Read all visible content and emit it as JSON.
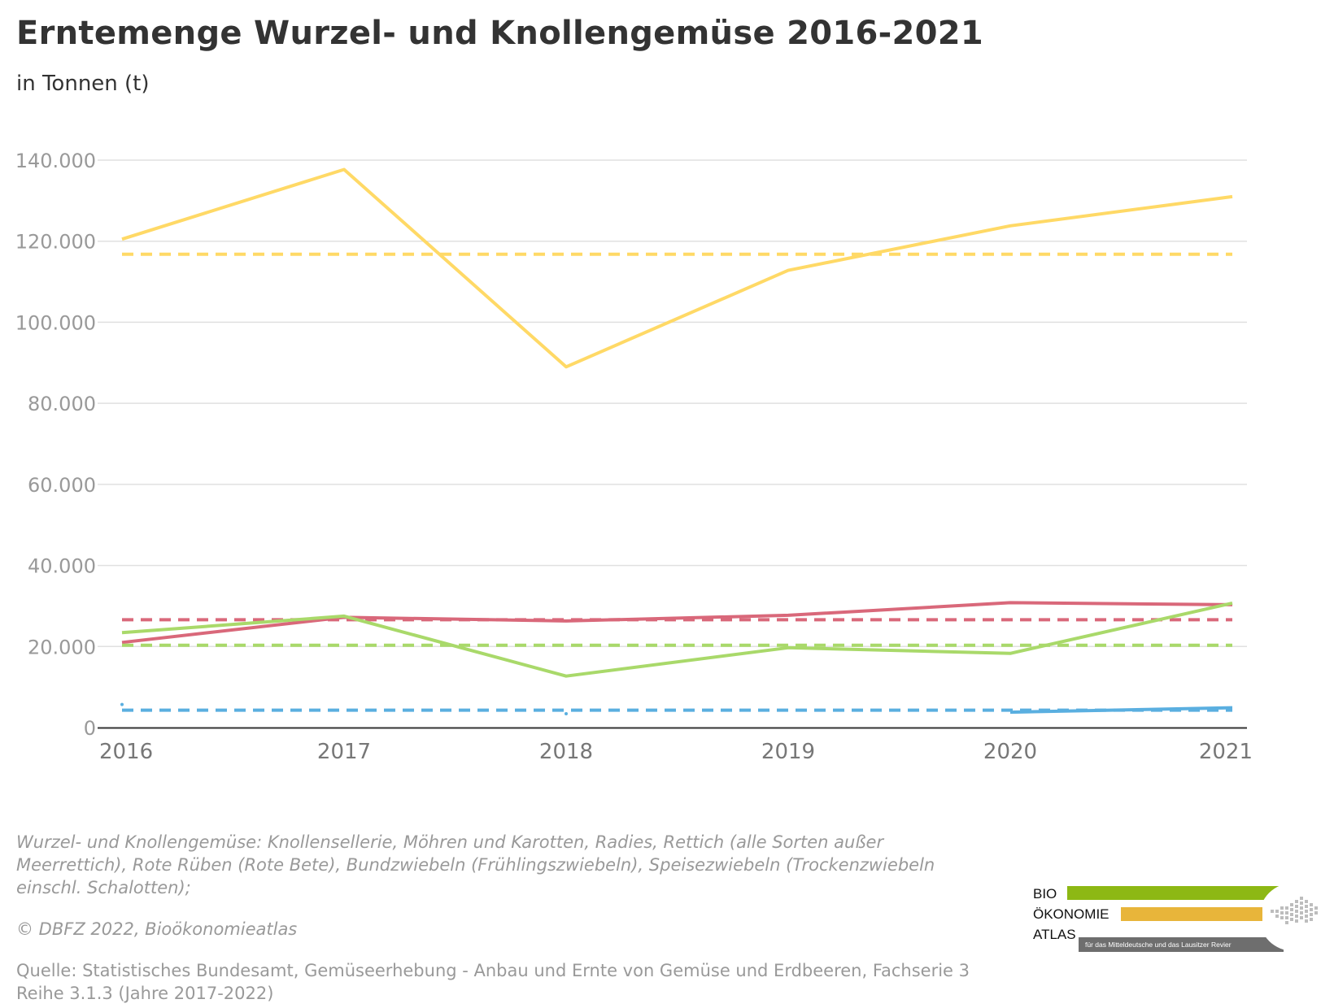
{
  "header": {
    "title": "Erntemenge Wurzel- und Knollengemüse 2016-2021",
    "subtitle": "in Tonnen (t)"
  },
  "chart_data": {
    "type": "line",
    "categories": [
      "2016",
      "2017",
      "2018",
      "2019",
      "2020",
      "2021"
    ],
    "x": [
      2016,
      2017,
      2018,
      2019,
      2020,
      2021
    ],
    "ylim": [
      0,
      140000
    ],
    "yticks": [
      0,
      20000,
      40000,
      60000,
      80000,
      100000,
      120000,
      140000
    ],
    "ytick_labels": [
      "0",
      "20.000",
      "40.000",
      "60.000",
      "80.000",
      "100.000",
      "120.000",
      "140.000"
    ],
    "grid": true,
    "series": [
      {
        "color": "#FFD966",
        "style": "solid",
        "values": [
          120500,
          137700,
          89000,
          112800,
          123800,
          131000
        ]
      },
      {
        "color": "#FFD966",
        "style": "dashed",
        "values": [
          116800,
          116800,
          116800,
          116800,
          116800,
          116800
        ]
      },
      {
        "color": "#D9687A",
        "style": "solid",
        "values": [
          21000,
          27200,
          26300,
          27700,
          30800,
          30300
        ]
      },
      {
        "color": "#D9687A",
        "style": "dashed",
        "values": [
          26600,
          26600,
          26600,
          26600,
          26600,
          26600
        ]
      },
      {
        "color": "#A9D96A",
        "style": "solid",
        "values": [
          23400,
          27500,
          12700,
          19700,
          18300,
          30700
        ]
      },
      {
        "color": "#A9D96A",
        "style": "dashed",
        "values": [
          20300,
          20300,
          20300,
          20300,
          20300,
          20300
        ]
      },
      {
        "color": "#5AAFE0",
        "style": "solid",
        "values": [
          5700,
          null,
          3400,
          null,
          3800,
          4900
        ]
      },
      {
        "color": "#5AAFE0",
        "style": "dashed",
        "values": [
          4300,
          4300,
          4300,
          4300,
          4300,
          4300
        ]
      }
    ]
  },
  "footer": {
    "footnote": "Wurzel- und Knollengemüse: Knollensellerie, Möhren und Karotten, Radies, Rettich (alle Sorten außer Meerrettich), Rote Rüben (Rote Bete), Bundzwiebeln (Frühlingszwiebeln), Speisezwiebeln (Trockenzwiebeln einschl. Schalotten);",
    "copyright": "© DBFZ 2022, Bioökonomieatlas",
    "source": "Quelle: Statistisches Bundesamt, Gemüseerhebung - Anbau und Ernte von Gemüse und Erdbeeren, Fachserie 3 Reihe 3.1.3 (Jahre 2017-2022)"
  },
  "logo": {
    "word1": "BIO",
    "word2": "ÖKONOMIE",
    "word3": "ATLAS",
    "tagline": "für das Mitteldeutsche und das Lausitzer Revier",
    "color_bio": "#8DB814",
    "color_oekonomie": "#E8B53A",
    "color_atlas": "#6E6E6E"
  }
}
